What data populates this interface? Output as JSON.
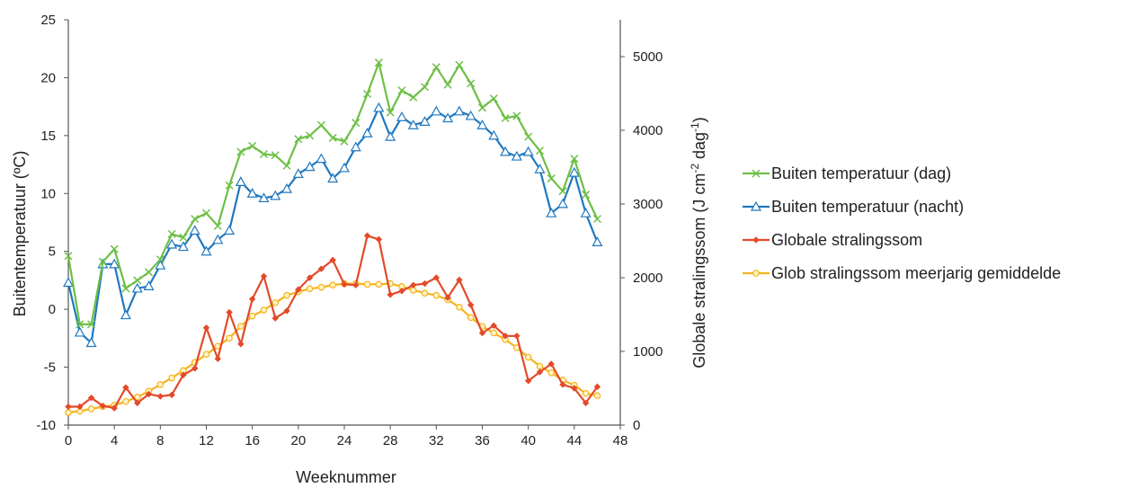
{
  "chart_data": {
    "type": "line",
    "xlabel": "Weeknummer",
    "ylabel_left": "Buitentemperatuur  (ºC)",
    "ylabel_right": {
      "prefix": "Globale  stralingssom  (J cm",
      "sup1": "-2",
      "mid": " dag",
      "sup2": "-1",
      "suffix": ")"
    },
    "x_range": [
      0,
      48
    ],
    "x_ticks": [
      "0",
      "4",
      "8",
      "12",
      "16",
      "20",
      "24",
      "28",
      "32",
      "36",
      "40",
      "44",
      "48"
    ],
    "y_left_range": [
      -10,
      25
    ],
    "y_left_ticks": [
      "-10",
      "-5",
      "0",
      "5",
      "10",
      "15",
      "20",
      "25"
    ],
    "y_right_range": [
      0,
      5500
    ],
    "y_right_ticks": [
      "0",
      "1000",
      "2000",
      "3000",
      "4000",
      "5000"
    ],
    "grid": false,
    "legend_position": "right",
    "series": [
      {
        "name": "Buiten temperatuur  (dag)",
        "axis": "left",
        "color": "#6dbf45",
        "marker": "x",
        "x": [
          0,
          1,
          2,
          3,
          4,
          5,
          6,
          7,
          8,
          9,
          10,
          11,
          12,
          13,
          14,
          15,
          16,
          17,
          18,
          19,
          20,
          21,
          22,
          23,
          24,
          25,
          26,
          27,
          28,
          29,
          30,
          31,
          32,
          33,
          34,
          35,
          36,
          37,
          38,
          39,
          40,
          41,
          42,
          43,
          44,
          45,
          46
        ],
        "y": [
          4.6,
          -1.3,
          -1.3,
          4.1,
          5.2,
          1.8,
          2.5,
          3.2,
          4.3,
          6.5,
          6.2,
          7.8,
          8.3,
          7.2,
          10.7,
          13.6,
          14.1,
          13.4,
          13.3,
          12.4,
          14.7,
          15.0,
          15.9,
          14.8,
          14.5,
          16.1,
          18.6,
          21.3,
          17.0,
          18.9,
          18.3,
          19.2,
          20.9,
          19.4,
          21.1,
          19.5,
          17.4,
          18.2,
          16.5,
          16.7,
          14.9,
          13.7,
          11.3,
          10.2,
          13.0,
          9.9,
          7.8
        ]
      },
      {
        "name": "Buiten temperatuur (nacht)",
        "axis": "left",
        "color": "#1f78c0",
        "marker": "triangle",
        "x": [
          0,
          1,
          2,
          3,
          4,
          5,
          6,
          7,
          8,
          9,
          10,
          11,
          12,
          13,
          14,
          15,
          16,
          17,
          18,
          19,
          20,
          21,
          22,
          23,
          24,
          25,
          26,
          27,
          28,
          29,
          30,
          31,
          32,
          33,
          34,
          35,
          36,
          37,
          38,
          39,
          40,
          41,
          42,
          43,
          44,
          45,
          46
        ],
        "y": [
          2.3,
          -2.0,
          -2.9,
          3.9,
          3.9,
          -0.5,
          1.8,
          2.0,
          3.8,
          5.6,
          5.4,
          6.8,
          5.0,
          6.0,
          6.8,
          11.0,
          10.0,
          9.6,
          9.8,
          10.4,
          11.7,
          12.3,
          13.0,
          11.3,
          12.2,
          14.0,
          15.2,
          17.4,
          14.9,
          16.6,
          15.9,
          16.2,
          17.1,
          16.5,
          17.1,
          16.7,
          15.9,
          15.0,
          13.6,
          13.2,
          13.6,
          12.1,
          8.3,
          9.1,
          11.8,
          8.3,
          5.8
        ]
      },
      {
        "name": "Globale stralingssom",
        "axis": "right",
        "color": "#e34a2a",
        "marker": "diamond",
        "x": [
          0,
          1,
          2,
          3,
          4,
          5,
          6,
          7,
          8,
          9,
          10,
          11,
          12,
          13,
          14,
          15,
          16,
          17,
          18,
          19,
          20,
          21,
          22,
          23,
          24,
          25,
          26,
          27,
          28,
          29,
          30,
          31,
          32,
          33,
          34,
          35,
          36,
          37,
          38,
          39,
          40,
          41,
          42,
          43,
          44,
          45,
          46
        ],
        "y": [
          250,
          250,
          370,
          260,
          230,
          510,
          300,
          420,
          390,
          410,
          680,
          770,
          1320,
          900,
          1530,
          1100,
          1710,
          2020,
          1450,
          1550,
          1840,
          2000,
          2120,
          2240,
          1910,
          1900,
          2570,
          2520,
          1770,
          1820,
          1900,
          1920,
          2000,
          1730,
          1970,
          1630,
          1250,
          1350,
          1210,
          1210,
          600,
          720,
          830,
          550,
          500,
          300,
          520
        ]
      },
      {
        "name": "Glob stralingssom meerjarig gemiddelde",
        "axis": "right",
        "color": "#f5b31e",
        "marker": "circle",
        "x": [
          0,
          1,
          2,
          3,
          4,
          5,
          6,
          7,
          8,
          9,
          10,
          11,
          12,
          13,
          14,
          15,
          16,
          17,
          18,
          19,
          20,
          21,
          22,
          23,
          24,
          25,
          26,
          27,
          28,
          29,
          30,
          31,
          32,
          33,
          34,
          35,
          36,
          37,
          38,
          39,
          40,
          41,
          42,
          43,
          44,
          45,
          46
        ],
        "y": [
          170,
          190,
          220,
          250,
          270,
          320,
          380,
          460,
          550,
          640,
          740,
          850,
          960,
          1070,
          1180,
          1340,
          1480,
          1560,
          1660,
          1760,
          1810,
          1850,
          1870,
          1900,
          1920,
          1920,
          1910,
          1910,
          1920,
          1880,
          1830,
          1790,
          1760,
          1700,
          1600,
          1460,
          1340,
          1250,
          1160,
          1050,
          920,
          800,
          710,
          610,
          540,
          430,
          400
        ]
      }
    ]
  }
}
